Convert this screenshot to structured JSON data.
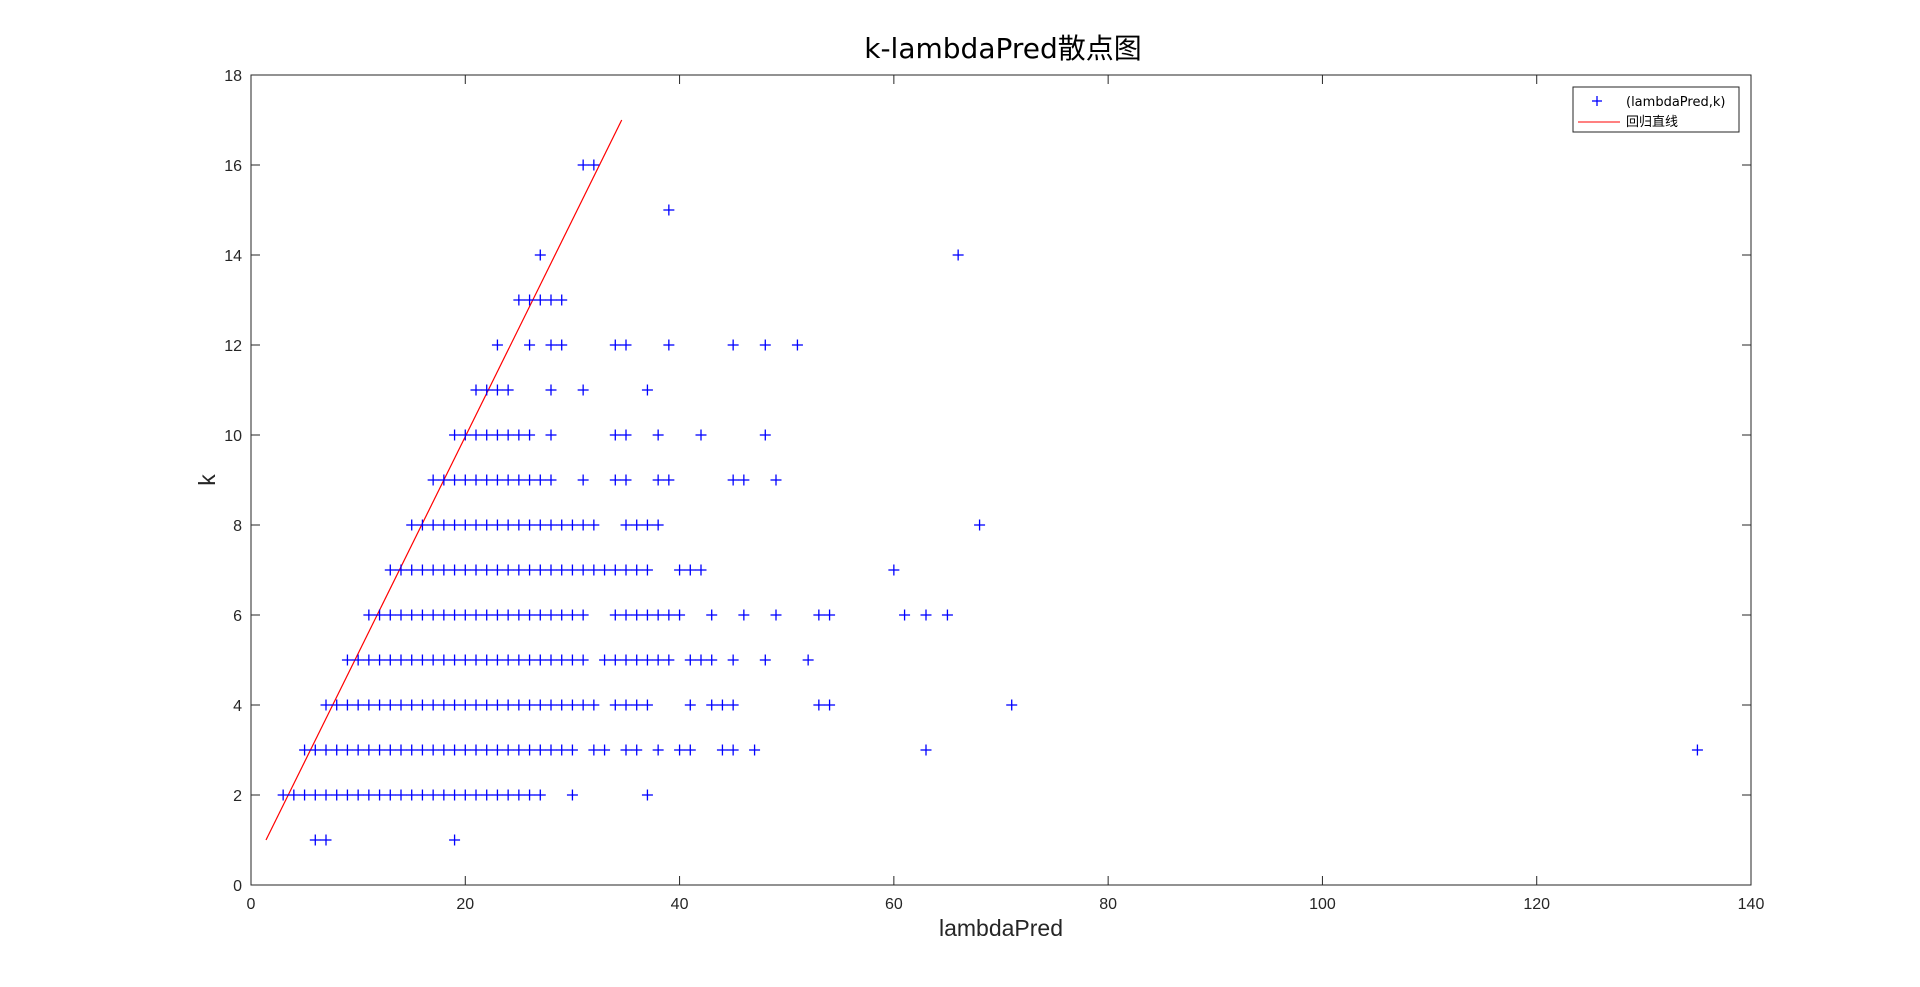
{
  "chart_data": {
    "type": "scatter",
    "title": "k-lambdaPred散点图",
    "xlabel": "lambdaPred",
    "ylabel": "k",
    "xlim": [
      0,
      140
    ],
    "ylim": [
      0,
      18
    ],
    "xticks": [
      "0",
      "20",
      "40",
      "60",
      "80",
      "100",
      "120",
      "140"
    ],
    "yticks": [
      "0",
      "2",
      "4",
      "6",
      "8",
      "10",
      "12",
      "14",
      "16",
      "18"
    ],
    "grid": false,
    "legend_position": "top-right",
    "colors": {
      "points": "#0000ff",
      "line": "#ff0000",
      "axes": "#262626"
    },
    "series": [
      {
        "name": "(lambdaPred,k)",
        "marker": "+",
        "points": [
          [
            6,
            1
          ],
          [
            7,
            1
          ],
          [
            19,
            1
          ],
          [
            3,
            2
          ],
          [
            4,
            2
          ],
          [
            5,
            2
          ],
          [
            6,
            2
          ],
          [
            7,
            2
          ],
          [
            8,
            2
          ],
          [
            9,
            2
          ],
          [
            10,
            2
          ],
          [
            11,
            2
          ],
          [
            12,
            2
          ],
          [
            13,
            2
          ],
          [
            14,
            2
          ],
          [
            15,
            2
          ],
          [
            16,
            2
          ],
          [
            17,
            2
          ],
          [
            18,
            2
          ],
          [
            19,
            2
          ],
          [
            20,
            2
          ],
          [
            21,
            2
          ],
          [
            22,
            2
          ],
          [
            23,
            2
          ],
          [
            24,
            2
          ],
          [
            25,
            2
          ],
          [
            26,
            2
          ],
          [
            27,
            2
          ],
          [
            30,
            2
          ],
          [
            37,
            2
          ],
          [
            5,
            3
          ],
          [
            6,
            3
          ],
          [
            7,
            3
          ],
          [
            8,
            3
          ],
          [
            9,
            3
          ],
          [
            10,
            3
          ],
          [
            11,
            3
          ],
          [
            12,
            3
          ],
          [
            13,
            3
          ],
          [
            14,
            3
          ],
          [
            15,
            3
          ],
          [
            16,
            3
          ],
          [
            17,
            3
          ],
          [
            18,
            3
          ],
          [
            19,
            3
          ],
          [
            20,
            3
          ],
          [
            21,
            3
          ],
          [
            22,
            3
          ],
          [
            23,
            3
          ],
          [
            24,
            3
          ],
          [
            25,
            3
          ],
          [
            26,
            3
          ],
          [
            27,
            3
          ],
          [
            28,
            3
          ],
          [
            29,
            3
          ],
          [
            30,
            3
          ],
          [
            32,
            3
          ],
          [
            33,
            3
          ],
          [
            35,
            3
          ],
          [
            36,
            3
          ],
          [
            38,
            3
          ],
          [
            40,
            3
          ],
          [
            41,
            3
          ],
          [
            44,
            3
          ],
          [
            45,
            3
          ],
          [
            47,
            3
          ],
          [
            63,
            3
          ],
          [
            135,
            3
          ],
          [
            7,
            4
          ],
          [
            8,
            4
          ],
          [
            9,
            4
          ],
          [
            10,
            4
          ],
          [
            11,
            4
          ],
          [
            12,
            4
          ],
          [
            13,
            4
          ],
          [
            14,
            4
          ],
          [
            15,
            4
          ],
          [
            16,
            4
          ],
          [
            17,
            4
          ],
          [
            18,
            4
          ],
          [
            19,
            4
          ],
          [
            20,
            4
          ],
          [
            21,
            4
          ],
          [
            22,
            4
          ],
          [
            23,
            4
          ],
          [
            24,
            4
          ],
          [
            25,
            4
          ],
          [
            26,
            4
          ],
          [
            27,
            4
          ],
          [
            28,
            4
          ],
          [
            29,
            4
          ],
          [
            30,
            4
          ],
          [
            31,
            4
          ],
          [
            32,
            4
          ],
          [
            34,
            4
          ],
          [
            35,
            4
          ],
          [
            36,
            4
          ],
          [
            37,
            4
          ],
          [
            41,
            4
          ],
          [
            43,
            4
          ],
          [
            44,
            4
          ],
          [
            45,
            4
          ],
          [
            53,
            4
          ],
          [
            54,
            4
          ],
          [
            71,
            4
          ],
          [
            9,
            5
          ],
          [
            10,
            5
          ],
          [
            11,
            5
          ],
          [
            12,
            5
          ],
          [
            13,
            5
          ],
          [
            14,
            5
          ],
          [
            15,
            5
          ],
          [
            16,
            5
          ],
          [
            17,
            5
          ],
          [
            18,
            5
          ],
          [
            19,
            5
          ],
          [
            20,
            5
          ],
          [
            21,
            5
          ],
          [
            22,
            5
          ],
          [
            23,
            5
          ],
          [
            24,
            5
          ],
          [
            25,
            5
          ],
          [
            26,
            5
          ],
          [
            27,
            5
          ],
          [
            28,
            5
          ],
          [
            29,
            5
          ],
          [
            30,
            5
          ],
          [
            31,
            5
          ],
          [
            33,
            5
          ],
          [
            34,
            5
          ],
          [
            35,
            5
          ],
          [
            36,
            5
          ],
          [
            37,
            5
          ],
          [
            38,
            5
          ],
          [
            39,
            5
          ],
          [
            41,
            5
          ],
          [
            42,
            5
          ],
          [
            43,
            5
          ],
          [
            45,
            5
          ],
          [
            48,
            5
          ],
          [
            52,
            5
          ],
          [
            11,
            6
          ],
          [
            12,
            6
          ],
          [
            13,
            6
          ],
          [
            14,
            6
          ],
          [
            15,
            6
          ],
          [
            16,
            6
          ],
          [
            17,
            6
          ],
          [
            18,
            6
          ],
          [
            19,
            6
          ],
          [
            20,
            6
          ],
          [
            21,
            6
          ],
          [
            22,
            6
          ],
          [
            23,
            6
          ],
          [
            24,
            6
          ],
          [
            25,
            6
          ],
          [
            26,
            6
          ],
          [
            27,
            6
          ],
          [
            28,
            6
          ],
          [
            29,
            6
          ],
          [
            30,
            6
          ],
          [
            31,
            6
          ],
          [
            34,
            6
          ],
          [
            35,
            6
          ],
          [
            36,
            6
          ],
          [
            37,
            6
          ],
          [
            38,
            6
          ],
          [
            39,
            6
          ],
          [
            40,
            6
          ],
          [
            43,
            6
          ],
          [
            46,
            6
          ],
          [
            49,
            6
          ],
          [
            53,
            6
          ],
          [
            54,
            6
          ],
          [
            61,
            6
          ],
          [
            63,
            6
          ],
          [
            65,
            6
          ],
          [
            13,
            7
          ],
          [
            14,
            7
          ],
          [
            15,
            7
          ],
          [
            16,
            7
          ],
          [
            17,
            7
          ],
          [
            18,
            7
          ],
          [
            19,
            7
          ],
          [
            20,
            7
          ],
          [
            21,
            7
          ],
          [
            22,
            7
          ],
          [
            23,
            7
          ],
          [
            24,
            7
          ],
          [
            25,
            7
          ],
          [
            26,
            7
          ],
          [
            27,
            7
          ],
          [
            28,
            7
          ],
          [
            29,
            7
          ],
          [
            30,
            7
          ],
          [
            31,
            7
          ],
          [
            32,
            7
          ],
          [
            33,
            7
          ],
          [
            34,
            7
          ],
          [
            35,
            7
          ],
          [
            36,
            7
          ],
          [
            37,
            7
          ],
          [
            40,
            7
          ],
          [
            41,
            7
          ],
          [
            42,
            7
          ],
          [
            60,
            7
          ],
          [
            15,
            8
          ],
          [
            16,
            8
          ],
          [
            17,
            8
          ],
          [
            18,
            8
          ],
          [
            19,
            8
          ],
          [
            20,
            8
          ],
          [
            21,
            8
          ],
          [
            22,
            8
          ],
          [
            23,
            8
          ],
          [
            24,
            8
          ],
          [
            25,
            8
          ],
          [
            26,
            8
          ],
          [
            27,
            8
          ],
          [
            28,
            8
          ],
          [
            29,
            8
          ],
          [
            30,
            8
          ],
          [
            31,
            8
          ],
          [
            32,
            8
          ],
          [
            35,
            8
          ],
          [
            36,
            8
          ],
          [
            37,
            8
          ],
          [
            38,
            8
          ],
          [
            68,
            8
          ],
          [
            17,
            9
          ],
          [
            18,
            9
          ],
          [
            19,
            9
          ],
          [
            20,
            9
          ],
          [
            21,
            9
          ],
          [
            22,
            9
          ],
          [
            23,
            9
          ],
          [
            24,
            9
          ],
          [
            25,
            9
          ],
          [
            26,
            9
          ],
          [
            27,
            9
          ],
          [
            28,
            9
          ],
          [
            31,
            9
          ],
          [
            34,
            9
          ],
          [
            35,
            9
          ],
          [
            38,
            9
          ],
          [
            39,
            9
          ],
          [
            45,
            9
          ],
          [
            46,
            9
          ],
          [
            49,
            9
          ],
          [
            19,
            10
          ],
          [
            20,
            10
          ],
          [
            21,
            10
          ],
          [
            22,
            10
          ],
          [
            23,
            10
          ],
          [
            24,
            10
          ],
          [
            25,
            10
          ],
          [
            26,
            10
          ],
          [
            28,
            10
          ],
          [
            34,
            10
          ],
          [
            35,
            10
          ],
          [
            38,
            10
          ],
          [
            42,
            10
          ],
          [
            48,
            10
          ],
          [
            21,
            11
          ],
          [
            22,
            11
          ],
          [
            23,
            11
          ],
          [
            24,
            11
          ],
          [
            28,
            11
          ],
          [
            31,
            11
          ],
          [
            37,
            11
          ],
          [
            23,
            12
          ],
          [
            26,
            12
          ],
          [
            28,
            12
          ],
          [
            29,
            12
          ],
          [
            34,
            12
          ],
          [
            35,
            12
          ],
          [
            39,
            12
          ],
          [
            45,
            12
          ],
          [
            48,
            12
          ],
          [
            51,
            12
          ],
          [
            25,
            13
          ],
          [
            26,
            13
          ],
          [
            27,
            13
          ],
          [
            28,
            13
          ],
          [
            29,
            13
          ],
          [
            27,
            14
          ],
          [
            66,
            14
          ],
          [
            39,
            15
          ],
          [
            31,
            16
          ],
          [
            32,
            16
          ]
        ]
      },
      {
        "name": "回归直线",
        "type": "line",
        "points": [
          [
            1.4,
            1
          ],
          [
            34.6,
            17
          ]
        ]
      }
    ]
  }
}
